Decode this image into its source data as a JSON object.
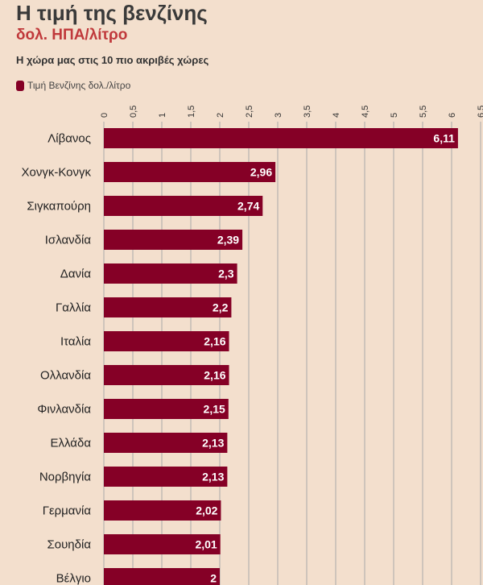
{
  "colors": {
    "background": "#f3dfcd",
    "bar": "#850026",
    "title": "#3a3a3a",
    "subtitle": "#c0393b",
    "grid": "#a9a9a9"
  },
  "chart_data": {
    "type": "bar",
    "orientation": "horizontal",
    "title": "Η τιμή της βενζίνης",
    "subtitle": "δολ. ΗΠΑ/λίτρο",
    "caption": "Η χώρα μας στις 10 πιο ακριβές χώρες",
    "legend": {
      "placement": "top-left",
      "entries": [
        "Τιμή Βενζίνης δολ./λίτρο"
      ]
    },
    "xlim": [
      0,
      6.5
    ],
    "grid": true,
    "ticks": [
      {
        "value": 0,
        "label": "0"
      },
      {
        "value": 0.5,
        "label": "0,5"
      },
      {
        "value": 1,
        "label": "1"
      },
      {
        "value": 1.5,
        "label": "1,5"
      },
      {
        "value": 2,
        "label": "2"
      },
      {
        "value": 2.5,
        "label": "2,5"
      },
      {
        "value": 3,
        "label": "3"
      },
      {
        "value": 3.5,
        "label": "3,5"
      },
      {
        "value": 4,
        "label": "4"
      },
      {
        "value": 4.5,
        "label": "4,5"
      },
      {
        "value": 5,
        "label": "5"
      },
      {
        "value": 5.5,
        "label": "5,5"
      },
      {
        "value": 6,
        "label": "6"
      },
      {
        "value": 6.5,
        "label": "6,5"
      }
    ],
    "categories": [
      "Λίβανος",
      "Χονγκ-Κονγκ",
      "Σιγκαπούρη",
      "Ισλανδία",
      "Δανία",
      "Γαλλία",
      "Ιταλία",
      "Ολλανδία",
      "Φινλανδία",
      "Ελλάδα",
      "Νορβηγία",
      "Γερμανία",
      "Σουηδία",
      "Βέλγιο"
    ],
    "series": [
      {
        "name": "Τιμή Βενζίνης δολ./λίτρο",
        "values": [
          6.11,
          2.96,
          2.74,
          2.39,
          2.3,
          2.2,
          2.16,
          2.16,
          2.15,
          2.13,
          2.13,
          2.02,
          2.01,
          2
        ],
        "value_labels": [
          "6,11",
          "2,96",
          "2,74",
          "2,39",
          "2,3",
          "2,2",
          "2,16",
          "2,16",
          "2,15",
          "2,13",
          "2,13",
          "2,02",
          "2,01",
          "2"
        ]
      }
    ]
  }
}
